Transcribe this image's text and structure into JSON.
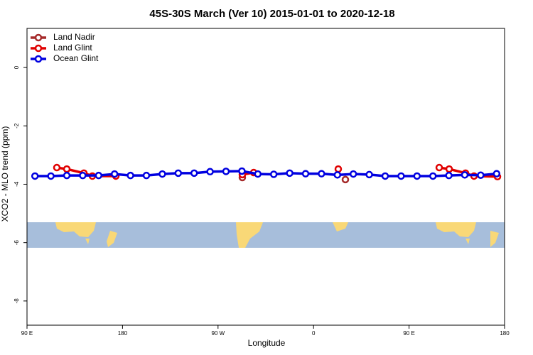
{
  "chart_data": {
    "type": "line",
    "title": "45S-30S March (Ver 10)   2015-01-01 to 2020-12-18",
    "x_label": "Longitude",
    "y_label": "XCO2 - MLO trend (ppm)",
    "xlim": [
      90,
      540
    ],
    "ylim": [
      -8.83,
      1.34
    ],
    "xticks": [
      {
        "value": 90,
        "label": "90 E"
      },
      {
        "value": 180,
        "label": "180"
      },
      {
        "value": 270,
        "label": "90 W"
      },
      {
        "value": 360,
        "label": "0"
      },
      {
        "value": 450,
        "label": "90 E"
      },
      {
        "value": 540,
        "label": "180"
      }
    ],
    "yticks": [
      0,
      -2,
      -4,
      -6,
      -8
    ],
    "legend": "top-left",
    "series": [
      {
        "name": "Land Nadir",
        "color": "#a52a2a",
        "x": [
          292.9,
          null,
          390
        ],
        "values": [
          -3.77,
          null,
          -3.84
        ]
      },
      {
        "name": "Land Glint",
        "color": "#e00000",
        "x": [
          118.1,
          127.5,
          143.6,
          151.6,
          173.7,
          null,
          292.9,
          303.6,
          null,
          383.3,
          null,
          478.4,
          487.8,
          503.2,
          511.2,
          533.3
        ],
        "values": [
          -3.43,
          -3.48,
          -3.62,
          -3.72,
          -3.72,
          null,
          -3.67,
          -3.6,
          null,
          -3.48,
          null,
          -3.43,
          -3.48,
          -3.62,
          -3.72,
          -3.74
        ]
      },
      {
        "name": "Ocean Glint",
        "color": "#0000e0",
        "x": [
          97.5,
          112.5,
          127.5,
          142.5,
          157.5,
          172.5,
          187.5,
          202.5,
          217.5,
          232.5,
          247.5,
          262.5,
          277.5,
          292.5,
          307.5,
          322.5,
          337.5,
          352.5,
          367.5,
          382.5,
          397.5,
          412.5,
          427.5,
          442.5,
          457.5,
          472.5,
          487.5,
          502.5,
          517.5,
          532.5
        ],
        "values": [
          -3.72,
          -3.72,
          -3.7,
          -3.7,
          -3.7,
          -3.65,
          -3.7,
          -3.7,
          -3.65,
          -3.62,
          -3.62,
          -3.57,
          -3.56,
          -3.55,
          -3.65,
          -3.66,
          -3.62,
          -3.64,
          -3.64,
          -3.68,
          -3.65,
          -3.67,
          -3.72,
          -3.72,
          -3.72,
          -3.72,
          -3.7,
          -3.68,
          -3.69,
          -3.64
        ]
      }
    ]
  }
}
